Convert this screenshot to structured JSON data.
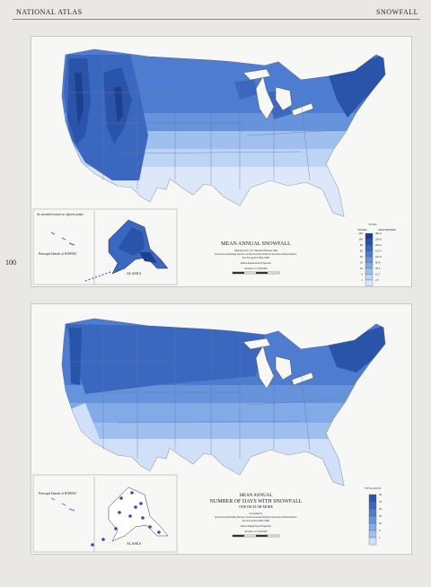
{
  "header": {
    "left": "NATIONAL ATLAS",
    "right": "SNOWFALL",
    "page_number": "100"
  },
  "map1": {
    "title": "MEAN ANNUAL SNOWFALL",
    "sub1": "Adapted from U.S. Weather Bureau data",
    "sub2": "Environmental Data Service, Environmental Science Services Administration",
    "sub3": "For the period 1931-1960",
    "proj": "Albers Equal Area Projection",
    "scale": "SCALE 1:17,000,000",
    "hawaii_label": "Principal Islands of HAWAII",
    "alaska_label": "ALASKA",
    "hawaii_note": "No snowfall except on highest peaks",
    "legend_title": "TOTAL",
    "legend_col1": "INCHES",
    "legend_col2": "CENTIMETERS",
    "legend_inches": [
      "150",
      "100",
      "80",
      "60",
      "40",
      "20",
      "10",
      "5",
      "1"
    ],
    "legend_cm": [
      "381.0",
      "254.0",
      "203.2",
      "152.4",
      "101.6",
      "50.8",
      "25.4",
      "12.7",
      "2.5"
    ],
    "colors": [
      "#1c3f8f",
      "#2a53aa",
      "#3a67c0",
      "#4e7cd0",
      "#6693dc",
      "#82aae6",
      "#9fc0ee",
      "#bdd5f5",
      "#dce8fa"
    ]
  },
  "map2": {
    "title1": "MEAN ANNUAL",
    "title2": "NUMBER OF DAYS WITH SNOWFALL",
    "title3": "ONE INCH OR MORE",
    "sub1": "Compiled by",
    "sub2": "Environmental Data Service, Environmental Science Services Administration",
    "sub3": "For the period 1931-1960",
    "proj": "Albers Equal Area Projection",
    "scale": "SCALE 1:17,000,000",
    "hawaii_label": "Principal Islands of HAWAII",
    "alaska_label": "ALASKA",
    "legend_title": "TOTAL DAYS",
    "legend_values": [
      "50",
      "40",
      "30",
      "20",
      "10",
      "5",
      "1"
    ],
    "colors": [
      "#2a53aa",
      "#3a67c0",
      "#4e7cd0",
      "#6693dc",
      "#82aae6",
      "#9fc0ee",
      "#cfe0f8"
    ]
  }
}
